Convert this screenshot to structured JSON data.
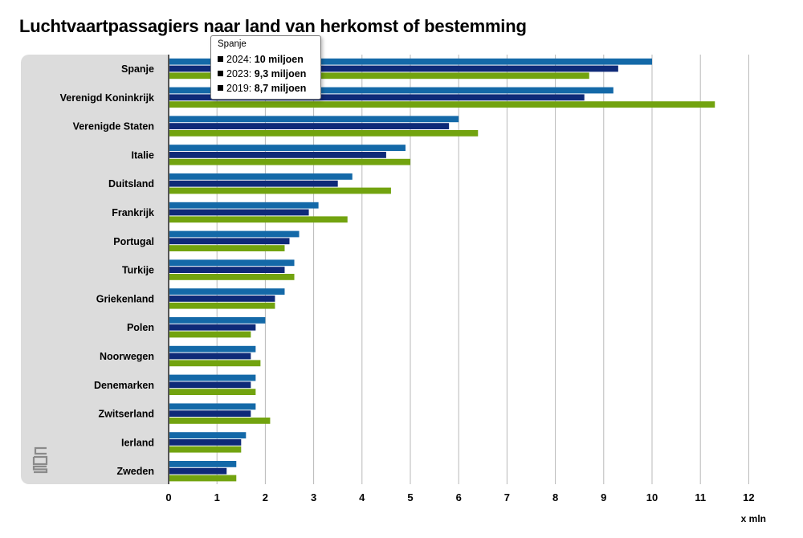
{
  "chart_data": {
    "type": "bar",
    "orientation": "horizontal",
    "title": "Luchtvaartpassagiers naar land van herkomst of bestemming",
    "xlabel": "x mln",
    "xlim": [
      0,
      12
    ],
    "xticks": [
      "0",
      "1",
      "2",
      "3",
      "4",
      "5",
      "6",
      "7",
      "8",
      "9",
      "10",
      "11",
      "12"
    ],
    "grid": true,
    "categories": [
      "Spanje",
      "Verenigd Koninkrijk",
      "Verenigde Staten",
      "Italie",
      "Duitsland",
      "Frankrijk",
      "Portugal",
      "Turkije",
      "Griekenland",
      "Polen",
      "Noorwegen",
      "Denemarken",
      "Zwitserland",
      "Ierland",
      "Zweden"
    ],
    "series": [
      {
        "name": "2024",
        "color": "#1469a8",
        "values": [
          10.0,
          9.2,
          6.0,
          4.9,
          3.8,
          3.1,
          2.7,
          2.6,
          2.4,
          2.0,
          1.8,
          1.8,
          1.8,
          1.6,
          1.4
        ]
      },
      {
        "name": "2023",
        "color": "#0e2a78",
        "values": [
          9.3,
          8.6,
          5.8,
          4.5,
          3.5,
          2.9,
          2.5,
          2.4,
          2.2,
          1.8,
          1.7,
          1.7,
          1.7,
          1.5,
          1.2
        ]
      },
      {
        "name": "2019",
        "color": "#72a30f",
        "values": [
          8.7,
          11.3,
          6.4,
          5.0,
          4.6,
          3.7,
          2.4,
          2.6,
          2.2,
          1.7,
          1.9,
          1.8,
          2.1,
          1.5,
          1.4
        ]
      }
    ]
  },
  "tooltip": {
    "heading": "Spanje",
    "rows": [
      {
        "label": "2024: ",
        "value": "10 miljoen"
      },
      {
        "label": "2023: ",
        "value": "9,3 miljoen"
      },
      {
        "label": "2019: ",
        "value": "8,7 miljoen"
      }
    ]
  },
  "logo": {
    "text": "cbs"
  }
}
